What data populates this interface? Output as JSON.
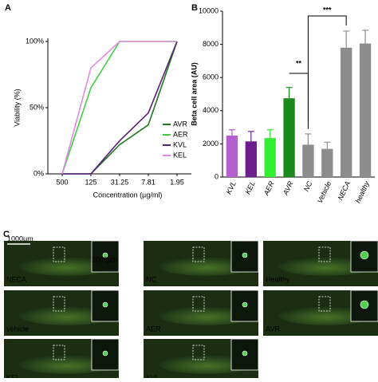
{
  "panel_labels": [
    "A",
    "B",
    "C"
  ],
  "chart_data": [
    {
      "type": "line",
      "y_label": "Viability (%)",
      "x_label": "Concentration (µg/ml)",
      "categories": [
        "500",
        "125",
        "31.25",
        "7.81",
        "1.95"
      ],
      "ylim": [
        0,
        100
      ],
      "yticks": [
        {
          "value": 0,
          "label": "0%"
        },
        {
          "value": 50,
          "label": "50%"
        },
        {
          "value": 100,
          "label": "100%"
        }
      ],
      "legend": "lower right",
      "series": [
        {
          "name": "AVR",
          "color": "#1f7a1f",
          "values": [
            0,
            0,
            22,
            37,
            100
          ]
        },
        {
          "name": "AER",
          "color": "#3fcf3f",
          "values": [
            0,
            65,
            100,
            100,
            100
          ]
        },
        {
          "name": "KVL",
          "color": "#5a1f7a",
          "values": [
            0,
            0,
            25,
            46,
            100
          ]
        },
        {
          "name": "KEL",
          "color": "#e08ae6",
          "values": [
            0,
            80,
            100,
            100,
            100
          ]
        }
      ]
    },
    {
      "type": "bar",
      "y_label": "Beta cell area (AU)",
      "categories": [
        "KVL",
        "KEL",
        "AER",
        "AVR",
        "NC",
        "Vehicle",
        "NECA",
        "healthy"
      ],
      "values": [
        2500,
        2150,
        2350,
        4750,
        1950,
        1700,
        7800,
        8050
      ],
      "errors": [
        350,
        600,
        500,
        650,
        650,
        400,
        1000,
        800
      ],
      "colors": [
        "#b45fcf",
        "#6b1e8c",
        "#33ee33",
        "#1a8a1a",
        "#8c8c8c",
        "#8c8c8c",
        "#8c8c8c",
        "#8c8c8c"
      ],
      "ylim": [
        0,
        10000
      ],
      "yticks": [
        0,
        2000,
        4000,
        6000,
        8000,
        10000
      ],
      "annotations": [
        "**",
        "***"
      ]
    }
  ],
  "images": {
    "scale_bar": "1000μm",
    "inset_scale": "1000μm",
    "labels": [
      "NECA",
      "NC",
      "Healthy",
      "vehicle",
      "AER",
      "AVR",
      "KEL",
      "KVL"
    ]
  }
}
